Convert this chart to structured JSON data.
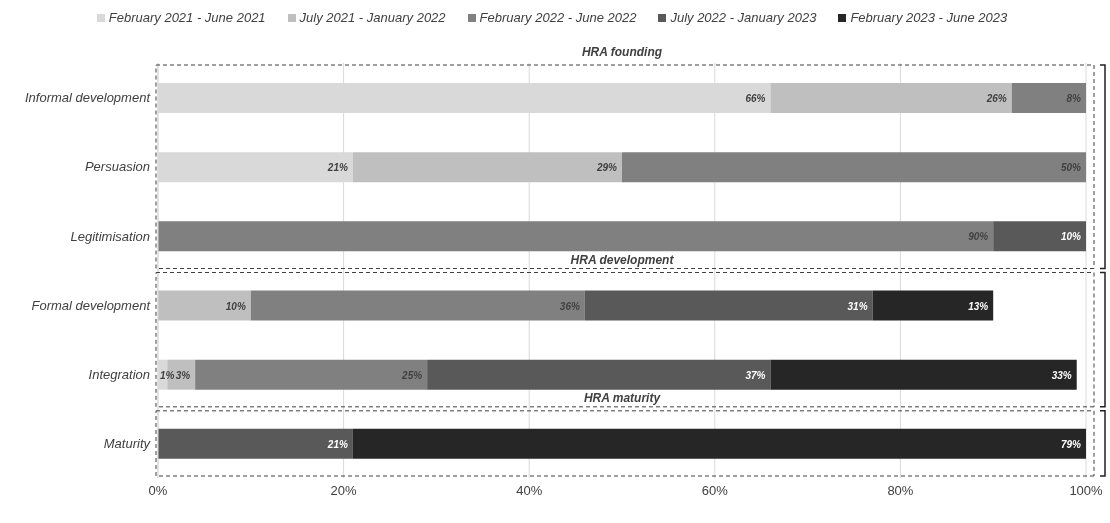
{
  "chart_data": {
    "type": "bar",
    "orientation": "horizontal",
    "stacked": true,
    "legend": "top",
    "grid": "x",
    "categories": [
      "Informal development",
      "Persuasion",
      "Legitimisation",
      "Formal development",
      "Integration",
      "Maturity"
    ],
    "annotations": [
      "HRA founding",
      "HRA development",
      "HRA maturity"
    ],
    "xlim": [
      0,
      100
    ],
    "xticks": [
      {
        "value": 0,
        "label": "0%"
      },
      {
        "value": 20,
        "label": "20%"
      },
      {
        "value": 40,
        "label": "40%"
      },
      {
        "value": 60,
        "label": "60%"
      },
      {
        "value": 80,
        "label": "80%"
      },
      {
        "value": 100,
        "label": "100%"
      }
    ],
    "series": [
      {
        "name": "February 2021 - June 2021",
        "color": "#d9d9d9",
        "values": [
          66,
          21,
          null,
          null,
          1,
          null
        ],
        "value_labels": [
          "66%",
          "21%",
          null,
          null,
          "1%",
          null
        ]
      },
      {
        "name": "July 2021 - January 2022",
        "color": "#bfbfbf",
        "values": [
          26,
          29,
          null,
          10,
          3,
          null
        ],
        "value_labels": [
          "26%",
          "29%",
          null,
          "10%",
          "3%",
          null
        ]
      },
      {
        "name": "February 2022 - June 2022",
        "color": "#808080",
        "values": [
          8,
          50,
          90,
          36,
          25,
          null
        ],
        "value_labels": [
          "8%",
          "50%",
          "90%",
          "36%",
          "25%",
          null
        ]
      },
      {
        "name": "July 2022 - January 2023",
        "color": "#595959",
        "values": [
          null,
          null,
          10,
          31,
          37,
          21
        ],
        "value_labels": [
          null,
          null,
          "10%",
          "31%",
          "37%",
          "21%"
        ]
      },
      {
        "name": "February 2023 - June 2023",
        "color": "#262626",
        "values": [
          null,
          null,
          null,
          13,
          33,
          79
        ],
        "value_labels": [
          null,
          null,
          null,
          "13%",
          "33%",
          "79%"
        ]
      }
    ]
  }
}
